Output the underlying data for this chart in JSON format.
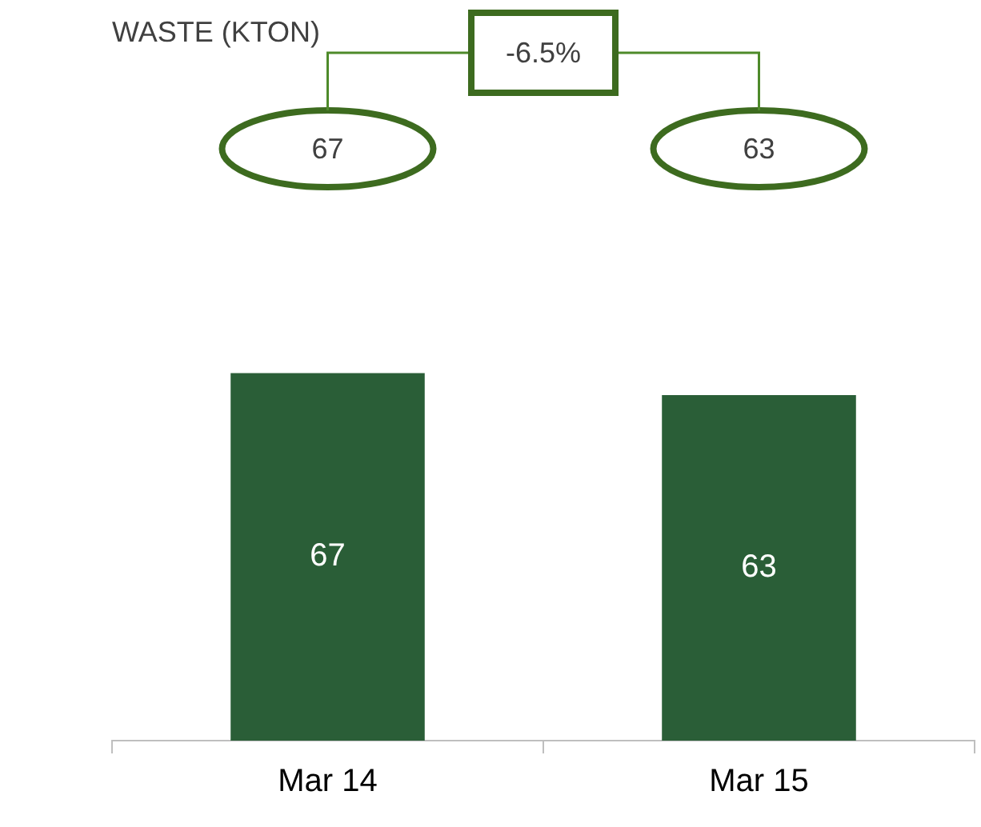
{
  "chart_data": {
    "type": "bar",
    "title": "WASTE (KTON)",
    "categories": [
      "Mar 14",
      "Mar 15"
    ],
    "values": [
      67,
      63
    ],
    "color": "#2a5e37",
    "data_labels": true,
    "annotations": [
      "67",
      "63",
      "-6.5%"
    ]
  }
}
